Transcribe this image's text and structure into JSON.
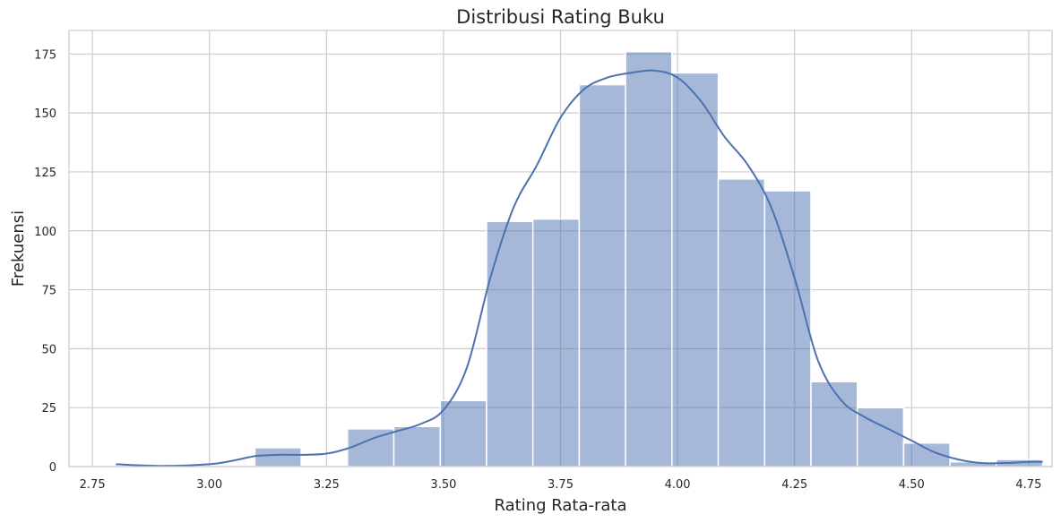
{
  "chart_data": {
    "type": "bar",
    "title": "Distribusi Rating Buku",
    "xlabel": "Rating Rata-rata",
    "ylabel": "Frekuensi",
    "xlim": [
      2.7,
      4.8
    ],
    "ylim": [
      0,
      185
    ],
    "xticks": [
      2.75,
      3.0,
      3.25,
      3.5,
      3.75,
      4.0,
      4.25,
      4.5,
      4.75
    ],
    "xtick_labels": [
      "2.75",
      "3.00",
      "3.25",
      "3.50",
      "3.75",
      "4.00",
      "4.25",
      "4.50",
      "4.75"
    ],
    "yticks": [
      0,
      25,
      50,
      75,
      100,
      125,
      150,
      175
    ],
    "ytick_labels": [
      "0",
      "25",
      "50",
      "75",
      "100",
      "125",
      "150",
      "175"
    ],
    "grid": true,
    "bin_edges": [
      2.8,
      2.899,
      2.998,
      3.097,
      3.196,
      3.295,
      3.394,
      3.493,
      3.592,
      3.691,
      3.79,
      3.889,
      3.988,
      4.087,
      4.186,
      4.285,
      4.384,
      4.483,
      4.582,
      4.681,
      4.78
    ],
    "values": [
      0,
      0,
      0,
      8,
      0,
      16,
      17,
      28,
      104,
      105,
      162,
      176,
      167,
      122,
      117,
      36,
      25,
      10,
      2,
      3
    ],
    "kde": {
      "x": [
        2.8,
        2.9,
        3.0,
        3.05,
        3.1,
        3.15,
        3.2,
        3.25,
        3.3,
        3.35,
        3.4,
        3.45,
        3.5,
        3.55,
        3.6,
        3.65,
        3.7,
        3.75,
        3.8,
        3.85,
        3.9,
        3.95,
        4.0,
        4.05,
        4.1,
        4.15,
        4.2,
        4.25,
        4.3,
        4.35,
        4.4,
        4.45,
        4.5,
        4.55,
        4.6,
        4.65,
        4.7,
        4.75,
        4.78
      ],
      "y": [
        1,
        0.3,
        1,
        2.5,
        4.5,
        5,
        5,
        5.5,
        8,
        12,
        15,
        18,
        24,
        42,
        80,
        110,
        128,
        148,
        160,
        165,
        167,
        168,
        165,
        155,
        140,
        128,
        110,
        80,
        45,
        28,
        21,
        16,
        11,
        6,
        3,
        1.5,
        1.5,
        2,
        2
      ]
    },
    "colors": {
      "bar_fill": "#4c72b0",
      "bar_opacity": 0.5,
      "kde_line": "#4c72b0",
      "grid": "#cccccc",
      "background": "#ffffff"
    }
  }
}
